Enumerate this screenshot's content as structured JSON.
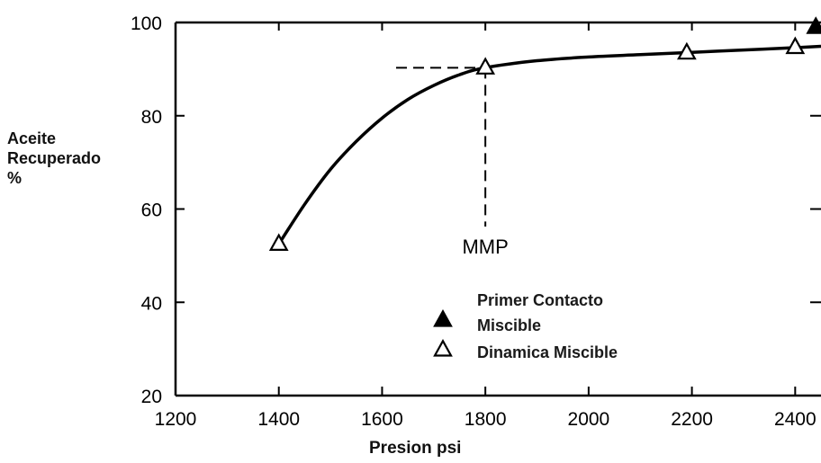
{
  "chart_data": {
    "type": "line",
    "ylabel_lines": [
      "Aceite",
      "Recuperado",
      "%"
    ],
    "xlabel": "Presion psi",
    "xlim": [
      1200,
      2450
    ],
    "ylim": [
      20,
      100
    ],
    "x_ticks": [
      1200,
      1400,
      1600,
      1800,
      2000,
      2200,
      2400
    ],
    "y_ticks": [
      20,
      40,
      60,
      80,
      100
    ],
    "grid": false,
    "curve": {
      "x": [
        1400,
        1450,
        1500,
        1550,
        1600,
        1650,
        1700,
        1750,
        1800,
        1900,
        2000,
        2100,
        2200,
        2300,
        2400,
        2450
      ],
      "y": [
        52.5,
        61,
        68.5,
        74.5,
        79.5,
        83.5,
        86.5,
        88.8,
        90.3,
        91.8,
        92.6,
        93.1,
        93.6,
        94.1,
        94.6,
        94.9
      ]
    },
    "series": [
      {
        "name": "Primer Contacto Miscible",
        "marker": "filled-triangle",
        "x": [
          2440
        ],
        "y": [
          99
        ]
      },
      {
        "name": "Dinamica Miscible",
        "marker": "open-triangle",
        "x": [
          1400,
          1800,
          2190,
          2400
        ],
        "y": [
          52.5,
          90.3,
          93.5,
          94.7
        ]
      }
    ],
    "mmp": {
      "label": "MMP",
      "x": 1800,
      "y": 90.3
    },
    "legend": {
      "placement": "bottom-center",
      "entries": [
        {
          "marker": "filled-triangle",
          "lines": [
            "Primer Contacto",
            "Miscible"
          ]
        },
        {
          "marker": "open-triangle",
          "lines": [
            "Dinamica Miscible"
          ]
        }
      ]
    },
    "line_color": "#000000"
  }
}
